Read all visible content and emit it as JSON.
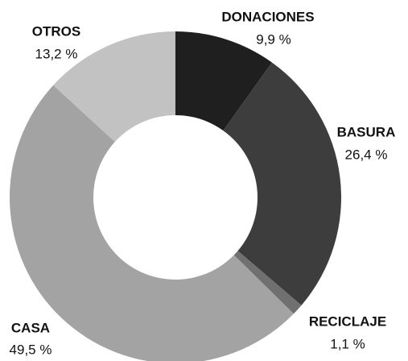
{
  "chart_data": {
    "type": "donut",
    "categories": [
      "DONACIONES",
      "BASURA",
      "RECICLAJE",
      "CASA",
      "OTROS"
    ],
    "values": [
      9.9,
      26.4,
      1.1,
      49.5,
      13.2
    ],
    "value_labels": [
      "9,9 %",
      "26,4 %",
      "1,1 %",
      "49,5 %",
      "13,2 %"
    ],
    "colors": [
      "#1f1f1f",
      "#3d3d3d",
      "#707070",
      "#a3a3a3",
      "#c2c2c2"
    ]
  }
}
